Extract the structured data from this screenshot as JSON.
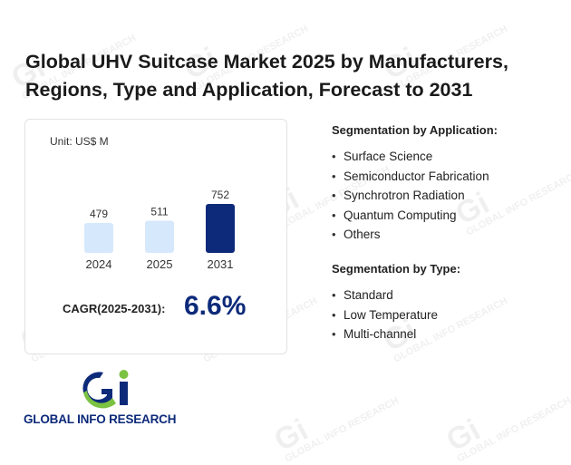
{
  "title_line1": "Global UHV Suitcase Market 2025 by Manufacturers,",
  "title_line2": "Regions, Type and Application, Forecast to 2031",
  "unit": "Unit: US$ M",
  "cagr_label": "CAGR(2025-2031):",
  "cagr_value": "6.6%",
  "application": {
    "heading": "Segmentation by Application:",
    "items": [
      "Surface Science",
      "Semiconductor Fabrication",
      "Synchrotron Radiation",
      "Quantum Computing",
      "Others"
    ]
  },
  "type": {
    "heading": "Segmentation by Type:",
    "items": [
      "Standard",
      "Low Temperature",
      "Multi-channel"
    ]
  },
  "logo_text": "GLOBAL INFO RESEARCH",
  "watermark_text": "GLOBAL INFO RESEARCH",
  "colors": {
    "bar_light": "#d6e8fb",
    "bar_dark": "#0d2a7a",
    "accent": "#0d2a7a",
    "logo_green": "#7cc242"
  },
  "chart_data": {
    "type": "bar",
    "categories": [
      "2024",
      "2025",
      "2031"
    ],
    "values": [
      479,
      511,
      752
    ],
    "title": "",
    "xlabel": "",
    "ylabel": "",
    "unit": "US$ M",
    "highlight": [
      "light",
      "light",
      "dark"
    ]
  }
}
